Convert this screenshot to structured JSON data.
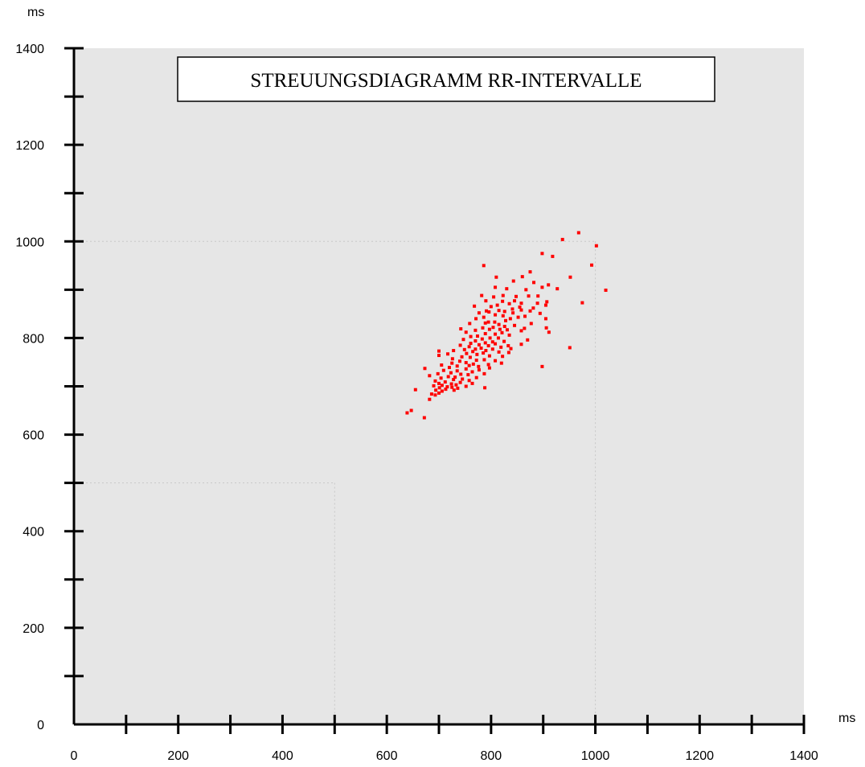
{
  "chart_data": {
    "type": "scatter",
    "title": "STREUUNGSDIAGRAMM RR-INTERVALLE",
    "xlabel": "ms",
    "ylabel": "ms",
    "xlim": [
      0,
      1400
    ],
    "ylim": [
      0,
      1400
    ],
    "x_ticks": [
      "0",
      "200",
      "400",
      "600",
      "800",
      "1000",
      "1200",
      "1400"
    ],
    "y_ticks": [
      "0",
      "200",
      "400",
      "600",
      "800",
      "1000",
      "1200",
      "1400"
    ],
    "grid": "dotted reference lines at 500 and 1000 ms",
    "background_color": "#e6e6e6",
    "point_color": "#ff0000",
    "points": [
      [
        968,
        1018
      ],
      [
        937,
        1004
      ],
      [
        1002,
        991
      ],
      [
        898,
        975
      ],
      [
        918,
        969
      ],
      [
        993,
        951
      ],
      [
        786,
        950
      ],
      [
        875,
        937
      ],
      [
        952,
        926
      ],
      [
        860,
        927
      ],
      [
        810,
        926
      ],
      [
        843,
        918
      ],
      [
        882,
        915
      ],
      [
        910,
        910
      ],
      [
        898,
        905
      ],
      [
        927,
        902
      ],
      [
        1020,
        899
      ],
      [
        808,
        905
      ],
      [
        830,
        902
      ],
      [
        867,
        900
      ],
      [
        782,
        888
      ],
      [
        823,
        888
      ],
      [
        805,
        885
      ],
      [
        848,
        886
      ],
      [
        872,
        887
      ],
      [
        890,
        887
      ],
      [
        845,
        877
      ],
      [
        822,
        876
      ],
      [
        790,
        877
      ],
      [
        907,
        875
      ],
      [
        858,
        872
      ],
      [
        975,
        873
      ],
      [
        889,
        872
      ],
      [
        835,
        871
      ],
      [
        905,
        868
      ],
      [
        812,
        868
      ],
      [
        768,
        866
      ],
      [
        800,
        865
      ],
      [
        855,
        864
      ],
      [
        881,
        862
      ],
      [
        841,
        860
      ],
      [
        858,
        858
      ],
      [
        815,
        857
      ],
      [
        791,
        856
      ],
      [
        826,
        855
      ],
      [
        875,
        856
      ],
      [
        796,
        854
      ],
      [
        842,
        852
      ],
      [
        894,
        851
      ],
      [
        777,
        852
      ],
      [
        808,
        848
      ],
      [
        823,
        846
      ],
      [
        865,
        845
      ],
      [
        852,
        843
      ],
      [
        786,
        843
      ],
      [
        837,
        840
      ],
      [
        771,
        840
      ],
      [
        905,
        840
      ],
      [
        828,
        836
      ],
      [
        807,
        833
      ],
      [
        795,
        833
      ],
      [
        789,
        831
      ],
      [
        877,
        830
      ],
      [
        759,
        830
      ],
      [
        815,
        828
      ],
      [
        845,
        826
      ],
      [
        826,
        824
      ],
      [
        804,
        822
      ],
      [
        784,
        821
      ],
      [
        864,
        820
      ],
      [
        906,
        821
      ],
      [
        742,
        819
      ],
      [
        797,
        818
      ],
      [
        817,
        818
      ],
      [
        831,
        817
      ],
      [
        770,
        816
      ],
      [
        858,
        815
      ],
      [
        911,
        812
      ],
      [
        752,
        812
      ],
      [
        821,
        811
      ],
      [
        789,
        809
      ],
      [
        808,
        808
      ],
      [
        835,
        806
      ],
      [
        774,
        804
      ],
      [
        761,
        803
      ],
      [
        798,
        800
      ],
      [
        814,
        800
      ],
      [
        783,
        798
      ],
      [
        747,
        797
      ],
      [
        870,
        796
      ],
      [
        770,
        794
      ],
      [
        825,
        793
      ],
      [
        803,
        792
      ],
      [
        789,
        790
      ],
      [
        761,
        789
      ],
      [
        808,
        788
      ],
      [
        858,
        787
      ],
      [
        777,
        786
      ],
      [
        741,
        785
      ],
      [
        833,
        784
      ],
      [
        795,
        784
      ],
      [
        758,
        782
      ],
      [
        819,
        781
      ],
      [
        951,
        780
      ],
      [
        781,
        779
      ],
      [
        838,
        778
      ],
      [
        770,
        777
      ],
      [
        803,
        777
      ],
      [
        749,
        776
      ],
      [
        790,
        774
      ],
      [
        728,
        774
      ],
      [
        700,
        773
      ],
      [
        765,
        772
      ],
      [
        815,
        771
      ],
      [
        834,
        770
      ],
      [
        785,
        769
      ],
      [
        753,
        768
      ],
      [
        717,
        767
      ],
      [
        773,
        766
      ],
      [
        700,
        764
      ],
      [
        797,
        763
      ],
      [
        822,
        762
      ],
      [
        744,
        761
      ],
      [
        760,
        760
      ],
      [
        726,
        757
      ],
      [
        787,
        755
      ],
      [
        772,
        754
      ],
      [
        808,
        753
      ],
      [
        740,
        752
      ],
      [
        752,
        749
      ],
      [
        725,
        748
      ],
      [
        820,
        748
      ],
      [
        766,
        746
      ],
      [
        795,
        745
      ],
      [
        705,
        744
      ],
      [
        758,
        743
      ],
      [
        735,
        742
      ],
      [
        776,
        741
      ],
      [
        898,
        741
      ],
      [
        720,
        739
      ],
      [
        797,
        738
      ],
      [
        673,
        737
      ],
      [
        752,
        736
      ],
      [
        777,
        734
      ],
      [
        709,
        733
      ],
      [
        735,
        732
      ],
      [
        764,
        730
      ],
      [
        723,
        728
      ],
      [
        787,
        726
      ],
      [
        698,
        726
      ],
      [
        742,
        725
      ],
      [
        756,
        724
      ],
      [
        682,
        722
      ],
      [
        718,
        720
      ],
      [
        731,
        719
      ],
      [
        772,
        718
      ],
      [
        704,
        717
      ],
      [
        745,
        715
      ],
      [
        728,
        714
      ],
      [
        758,
        712
      ],
      [
        693,
        711
      ],
      [
        712,
        709
      ],
      [
        741,
        708
      ],
      [
        700,
        706
      ],
      [
        764,
        706
      ],
      [
        724,
        705
      ],
      [
        733,
        703
      ],
      [
        706,
        702
      ],
      [
        690,
        701
      ],
      [
        752,
        700
      ],
      [
        716,
        699
      ],
      [
        725,
        698
      ],
      [
        701,
        697
      ],
      [
        788,
        697
      ],
      [
        736,
        696
      ],
      [
        713,
        694
      ],
      [
        694,
        692
      ],
      [
        729,
        692
      ],
      [
        706,
        690
      ],
      [
        655,
        693
      ],
      [
        700,
        686
      ],
      [
        686,
        684
      ],
      [
        693,
        682
      ],
      [
        682,
        673
      ],
      [
        647,
        650
      ],
      [
        639,
        645
      ],
      [
        672,
        635
      ]
    ]
  }
}
